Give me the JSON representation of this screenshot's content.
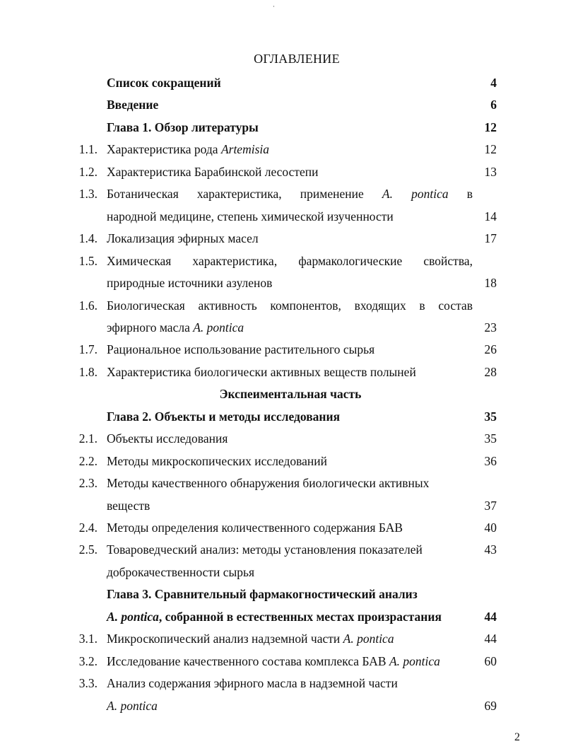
{
  "title": "ОГЛАВЛЕНИЕ",
  "page_number": "2",
  "rows": [
    {
      "num": "",
      "segs": [
        {
          "t": "Список сокращений"
        }
      ],
      "page": "4",
      "bold": true
    },
    {
      "num": "",
      "segs": [
        {
          "t": "Введение"
        }
      ],
      "page": "6",
      "bold": true
    },
    {
      "num": "",
      "segs": [
        {
          "t": "Глава 1. Обзор литературы"
        }
      ],
      "page": "12",
      "bold": true
    },
    {
      "num": "1.1.",
      "segs": [
        {
          "t": "Характеристика рода "
        },
        {
          "t": "Artemisia",
          "i": true
        }
      ],
      "page": "12"
    },
    {
      "num": "1.2.",
      "segs": [
        {
          "t": "Характеристика Барабинской лесостепи"
        }
      ],
      "page": "13"
    },
    {
      "num": "1.3.",
      "segs": [
        {
          "t": "Ботаническая характеристика, применение "
        },
        {
          "t": "A. pontica",
          "i": true
        },
        {
          "t": " в"
        }
      ],
      "page": "",
      "justify": true
    },
    {
      "num": "",
      "segs": [
        {
          "t": "народной медицине, степень химической изученности"
        }
      ],
      "page": "14"
    },
    {
      "num": "1.4.",
      "segs": [
        {
          "t": "Локализация эфирных масел"
        }
      ],
      "page": "17"
    },
    {
      "num": "1.5.",
      "segs": [
        {
          "t": "Химическая характеристика, фармакологические свойства,"
        }
      ],
      "page": "",
      "justify": true
    },
    {
      "num": "",
      "segs": [
        {
          "t": "природные источники азуленов"
        }
      ],
      "page": "18"
    },
    {
      "num": "1.6.",
      "segs": [
        {
          "t": "Биологическая активность компонентов, входящих в состав"
        }
      ],
      "page": "",
      "justify": true
    },
    {
      "num": "",
      "segs": [
        {
          "t": "эфирного масла "
        },
        {
          "t": "A. pontica",
          "i": true
        }
      ],
      "page": "23"
    },
    {
      "num": "1.7.",
      "segs": [
        {
          "t": "Рациональное использование растительного сырья"
        }
      ],
      "page": "26"
    },
    {
      "num": "1.8.",
      "segs": [
        {
          "t": "Характеристика биологически активных веществ полыней"
        }
      ],
      "page": "28"
    },
    {
      "num": "",
      "segs": [
        {
          "t": "Экспеиментальная часть"
        }
      ],
      "page": "",
      "bold": true,
      "center": true
    },
    {
      "num": "",
      "segs": [
        {
          "t": "Глава 2. Объекты и методы исследования"
        }
      ],
      "page": "35",
      "bold": true
    },
    {
      "num": "2.1.",
      "segs": [
        {
          "t": "Объекты исследования"
        }
      ],
      "page": "35"
    },
    {
      "num": "2.2.",
      "segs": [
        {
          "t": "Методы микроскопических исследований"
        }
      ],
      "page": "36"
    },
    {
      "num": "2.3.",
      "segs": [
        {
          "t": "Методы качественного обнаружения биологически активных"
        }
      ],
      "page": ""
    },
    {
      "num": "",
      "segs": [
        {
          "t": "веществ"
        }
      ],
      "page": "37"
    },
    {
      "num": "2.4.",
      "segs": [
        {
          "t": "Методы определения количественного содержания БАВ"
        }
      ],
      "page": "40"
    },
    {
      "num": "2.5.",
      "segs": [
        {
          "t": "Товароведческий анализ: методы установления показателей"
        }
      ],
      "page": "43"
    },
    {
      "num": "",
      "segs": [
        {
          "t": "доброкачественности сырья"
        }
      ],
      "page": ""
    },
    {
      "num": "",
      "segs": [
        {
          "t": "Глава 3. Сравнительный фармакогностический анализ"
        }
      ],
      "page": "",
      "bold": true
    },
    {
      "num": "",
      "segs": [
        {
          "t": "A. pontica",
          "i": true
        },
        {
          "t": ", собранной в естественных местах произрастания"
        }
      ],
      "page": "44",
      "bold": true
    },
    {
      "num": "3.1.",
      "segs": [
        {
          "t": "Микроскопический анализ надземной части "
        },
        {
          "t": "A. pontica",
          "i": true
        }
      ],
      "page": "44"
    },
    {
      "num": "3.2.",
      "segs": [
        {
          "t": "Исследование качественного состава комплекса БАВ "
        },
        {
          "t": "A. pontica",
          "i": true
        }
      ],
      "page": "60"
    },
    {
      "num": "3.3.",
      "segs": [
        {
          "t": "Анализ содержания эфирного масла в надземной части"
        }
      ],
      "page": ""
    },
    {
      "num": "",
      "segs": [
        {
          "t": "A. pontica",
          "i": true
        }
      ],
      "page": "69"
    }
  ]
}
